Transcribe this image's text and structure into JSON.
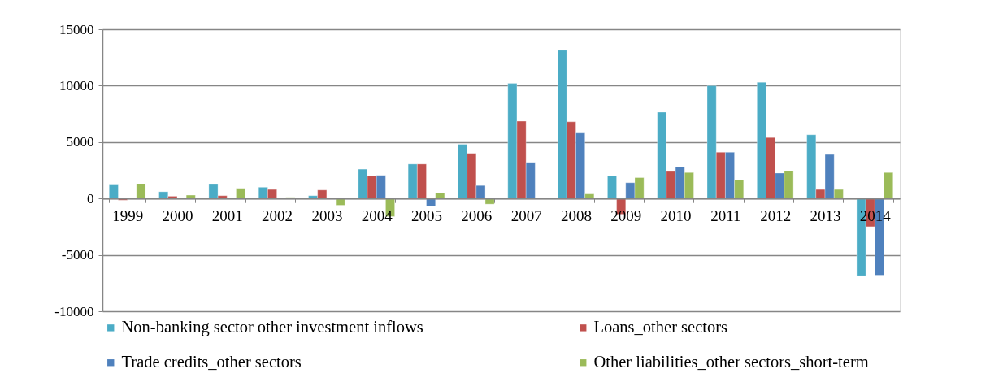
{
  "chart_data": {
    "type": "bar",
    "categories": [
      "1999",
      "2000",
      "2001",
      "2002",
      "2003",
      "2004",
      "2005",
      "2006",
      "2007",
      "2008",
      "2009",
      "2010",
      "2011",
      "2012",
      "2013",
      "2014"
    ],
    "series": [
      {
        "name": "Non-banking sector other investment inflows",
        "color": "#4bacc6",
        "values": [
          1200,
          600,
          1250,
          1000,
          250,
          2600,
          3050,
          4800,
          10200,
          13150,
          2000,
          7650,
          10000,
          10300,
          5650,
          -6850
        ]
      },
      {
        "name": "Loans_other sectors",
        "color": "#c0504d",
        "values": [
          -150,
          200,
          250,
          800,
          750,
          2000,
          3050,
          4000,
          6850,
          6800,
          -1400,
          2400,
          4100,
          5400,
          800,
          -2500
        ]
      },
      {
        "name": "Trade credits_other sectors",
        "color": "#4f81bd",
        "values": [
          null,
          null,
          null,
          null,
          null,
          2050,
          -700,
          1150,
          3200,
          5800,
          1400,
          2800,
          4100,
          2250,
          3900,
          -6800
        ]
      },
      {
        "name": "Other liabilities_other sectors_short-term",
        "color": "#9bbb59",
        "values": [
          1300,
          300,
          900,
          100,
          -600,
          -1600,
          500,
          -500,
          null,
          400,
          1850,
          2300,
          1650,
          2450,
          800,
          2300
        ]
      }
    ],
    "ylim": [
      -10000,
      15000
    ],
    "yticks": [
      -10000,
      -5000,
      0,
      5000,
      10000,
      15000
    ],
    "grid": "y",
    "legend": "bottom"
  }
}
